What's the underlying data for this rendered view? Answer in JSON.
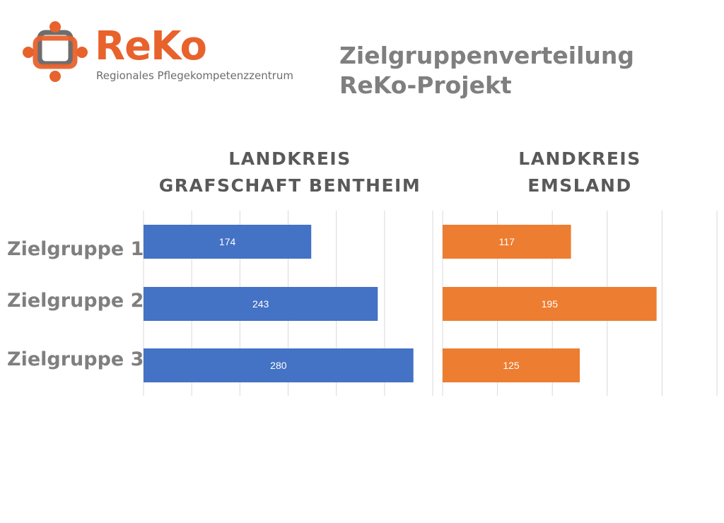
{
  "logo": {
    "wordmark": "ReKo",
    "subtitle": "Regionales Pflegekompetenzzentrum",
    "colors": {
      "orange": "#e8622c",
      "gray": "#6d6d6d"
    }
  },
  "title": {
    "line1": "Zielgruppenverteilung",
    "line2": "ReKo-Projekt"
  },
  "categories": [
    "Zielgruppe 1",
    "Zielgruppe 2",
    "Zielgruppe 3"
  ],
  "chart_data": [
    {
      "type": "bar",
      "orientation": "horizontal",
      "title_lines": [
        "LANDKREIS",
        "GRAFSCHAFT BENTHEIM"
      ],
      "categories": [
        "Zielgruppe 1",
        "Zielgruppe 2",
        "Zielgruppe 3"
      ],
      "values": [
        174,
        243,
        280
      ],
      "xlim": [
        0,
        300
      ],
      "grid": true,
      "color": "#4472c4"
    },
    {
      "type": "bar",
      "orientation": "horizontal",
      "title_lines": [
        "LANDKREIS",
        "EMSLAND"
      ],
      "categories": [
        "Zielgruppe 1",
        "Zielgruppe 2",
        "Zielgruppe 3"
      ],
      "values": [
        117,
        195,
        125
      ],
      "xlim": [
        0,
        250
      ],
      "grid": true,
      "color": "#ed7d31"
    }
  ]
}
